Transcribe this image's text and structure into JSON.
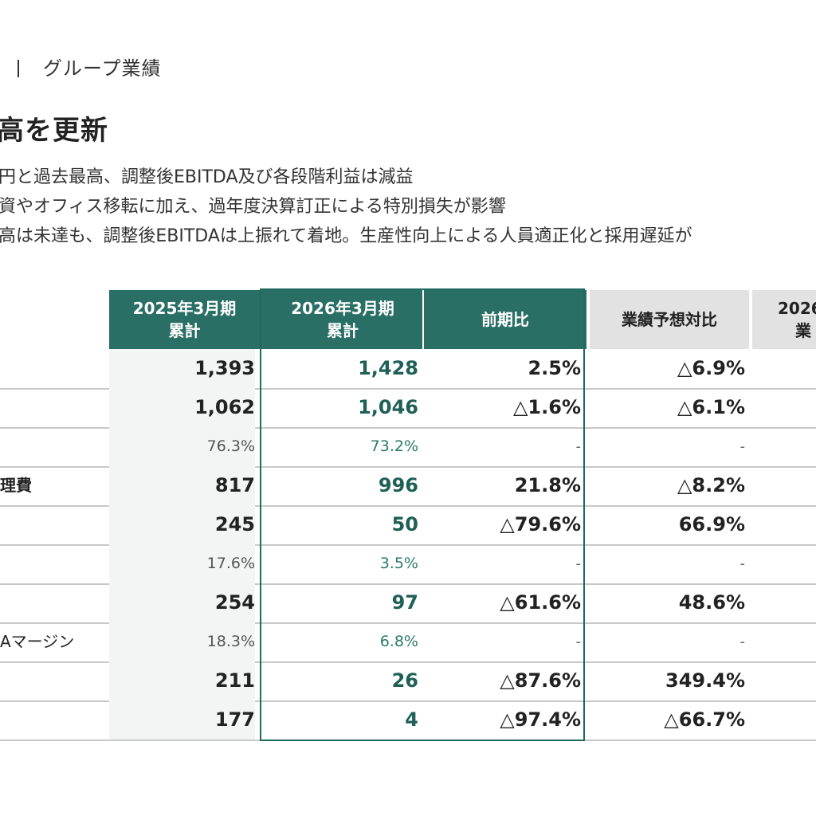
{
  "section": {
    "label": "グループ業績"
  },
  "headline": "高を更新",
  "bullets": [
    "円と過去最高、調整後EBITDA及び各段階利益は減益",
    "資やオフィス移転に加え、過年度決算訂正による特別損失が影響",
    "高は未達も、調整後EBITDAは上振れて着地。生産性向上による人員適正化と採用遅延が"
  ],
  "table": {
    "headers": [
      {
        "line1": "2025年3月期",
        "line2": "累計"
      },
      {
        "line1": "2026年3月期",
        "line2": "累計"
      },
      {
        "line1": "前期比",
        "line2": ""
      },
      {
        "line1": "業績予想対比",
        "line2": ""
      },
      {
        "line1": "2026",
        "line2": "業"
      }
    ],
    "rows": [
      {
        "label": "",
        "prev": "1,393",
        "curr": "1,428",
        "yoy": "2.5%",
        "vs_forecast": "△6.9%",
        "small": false
      },
      {
        "label": "",
        "prev": "1,062",
        "curr": "1,046",
        "yoy": "△1.6%",
        "vs_forecast": "△6.1%",
        "small": false
      },
      {
        "label": "",
        "prev": "76.3%",
        "curr": "73.2%",
        "yoy": "-",
        "vs_forecast": "-",
        "small": true
      },
      {
        "label": "理費",
        "prev": "817",
        "curr": "996",
        "yoy": "21.8%",
        "vs_forecast": "△8.2%",
        "small": false
      },
      {
        "label": "",
        "prev": "245",
        "curr": "50",
        "yoy": "△79.6%",
        "vs_forecast": "66.9%",
        "small": false
      },
      {
        "label": "",
        "prev": "17.6%",
        "curr": "3.5%",
        "yoy": "-",
        "vs_forecast": "-",
        "small": true
      },
      {
        "label": "",
        "prev": "254",
        "curr": "97",
        "yoy": "△61.6%",
        "vs_forecast": "48.6%",
        "small": false
      },
      {
        "label": "Aマージン",
        "prev": "18.3%",
        "curr": "6.8%",
        "yoy": "-",
        "vs_forecast": "-",
        "small": true
      },
      {
        "label": "",
        "prev": "211",
        "curr": "26",
        "yoy": "△87.6%",
        "vs_forecast": "349.4%",
        "small": false
      },
      {
        "label": "",
        "prev": "177",
        "curr": "4",
        "yoy": "△97.4%",
        "vs_forecast": "△66.7%",
        "small": false
      }
    ]
  },
  "colors": {
    "accent_green": "#2a6f65",
    "header_grey": "#e2e2e2",
    "value_green": "#1e5f56"
  }
}
